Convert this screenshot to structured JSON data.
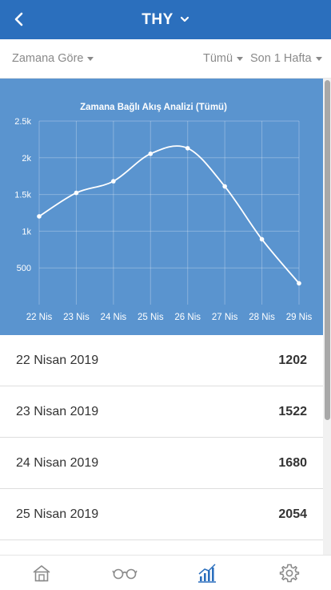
{
  "header": {
    "title": "THY",
    "back_icon": "chevron-left-icon",
    "title_dropdown_icon": "chevron-down-icon"
  },
  "filters": {
    "time_filter": "Zamana Göre",
    "type_filter": "Tümü",
    "period_filter": "Son 1 Hafta"
  },
  "colors": {
    "header": "#2b6fbd",
    "chart_bg": "#5a94cf",
    "active_tab": "#2b6fbd",
    "inactive_tab": "#8a8a8a"
  },
  "chart_data": {
    "type": "line",
    "title": "Zamana Bağlı Akış Analizi (Tümü)",
    "categories": [
      "22 Nis",
      "23 Nis",
      "24 Nis",
      "25 Nis",
      "26 Nis",
      "27 Nis",
      "28 Nis",
      "29 Nis"
    ],
    "values": [
      1202,
      1522,
      1680,
      2054,
      2130,
      1610,
      890,
      290
    ],
    "ylim": [
      0,
      2500
    ],
    "yticks": [
      500,
      1000,
      1500,
      2000,
      2500
    ],
    "ytick_labels": [
      "500",
      "1k",
      "1.5k",
      "2k",
      "2.5k"
    ],
    "grid": true,
    "smooth": true
  },
  "list": [
    {
      "date": "22 Nisan 2019",
      "value": "1202"
    },
    {
      "date": "23 Nisan 2019",
      "value": "1522"
    },
    {
      "date": "24 Nisan 2019",
      "value": "1680"
    },
    {
      "date": "25 Nisan 2019",
      "value": "2054"
    }
  ],
  "tabbar": {
    "items": [
      {
        "icon": "home-icon",
        "active": false
      },
      {
        "icon": "glasses-icon",
        "active": false
      },
      {
        "icon": "chart-icon",
        "active": true
      },
      {
        "icon": "gear-icon",
        "active": false
      }
    ]
  }
}
